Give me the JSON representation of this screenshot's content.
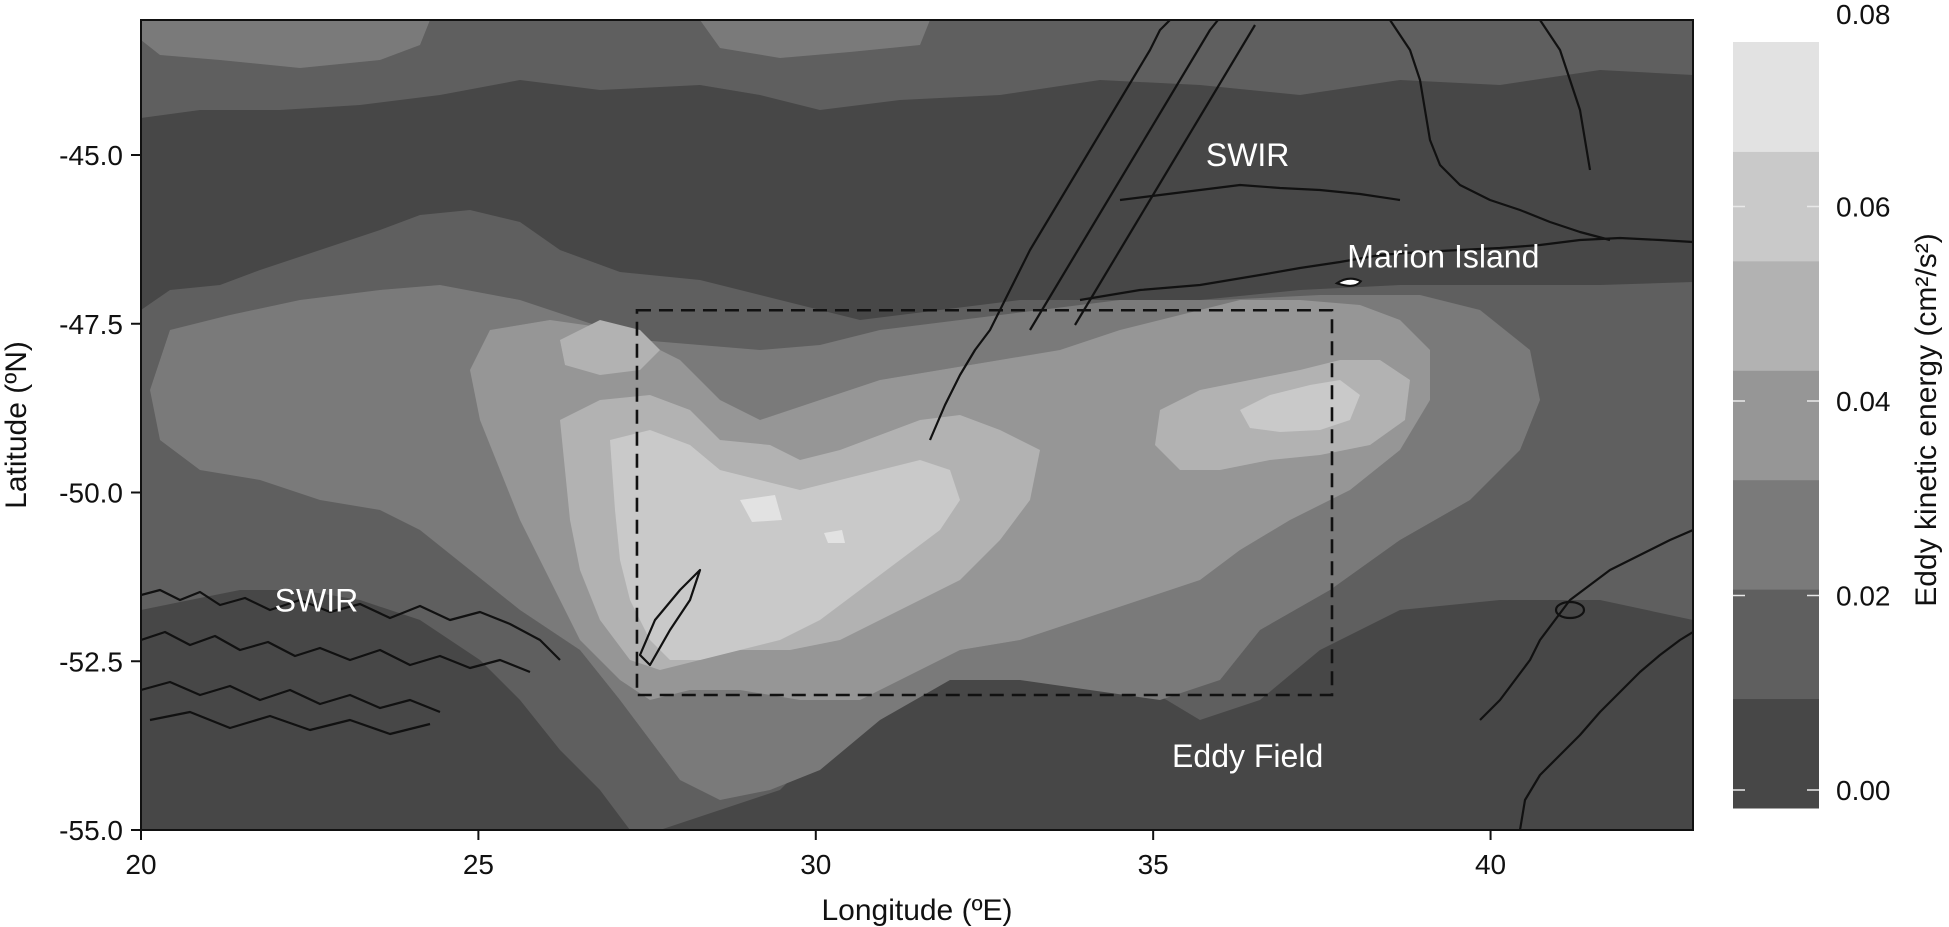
{
  "map": {
    "x_axis": {
      "title": "Longitude (ºE)",
      "range": [
        20,
        43
      ],
      "ticks": [
        {
          "value": 20,
          "label": "20"
        },
        {
          "value": 25,
          "label": "25"
        },
        {
          "value": 30,
          "label": "30"
        },
        {
          "value": 35,
          "label": "35"
        },
        {
          "value": 40,
          "label": "40"
        }
      ]
    },
    "y_axis": {
      "title": "Latitude (ºN)",
      "range": [
        -55,
        -43
      ],
      "ticks": [
        {
          "value": -45.0,
          "label": "-45.0"
        },
        {
          "value": -47.5,
          "label": "-47.5"
        },
        {
          "value": -50.0,
          "label": "-50.0"
        },
        {
          "value": -52.5,
          "label": "-52.5"
        },
        {
          "value": -55.0,
          "label": "-55.0"
        }
      ]
    },
    "labels": [
      {
        "text": "SWIR",
        "lon": 22.6,
        "lat": -51.6
      },
      {
        "text": "SWIR",
        "lon": 36.4,
        "lat": -45.0
      },
      {
        "text": "Marion Island",
        "lon": 39.3,
        "lat": -46.5
      },
      {
        "text": "Eddy Field",
        "lon": 36.4,
        "lat": -53.9
      }
    ],
    "box": {
      "lon_min": 27.35,
      "lon_max": 37.65,
      "lat_min": -53.0,
      "lat_max": -47.3
    },
    "marion_island": {
      "lon": 37.9,
      "lat": -46.9
    }
  },
  "colorbar": {
    "title": "Eddy kinetic energy (cm²/s²)",
    "range": [
      0.0,
      0.08
    ],
    "ticks": [
      {
        "value": 0.0,
        "label": "0.00"
      },
      {
        "value": 0.02,
        "label": "0.02"
      },
      {
        "value": 0.04,
        "label": "0.04"
      },
      {
        "value": 0.06,
        "label": "0.06"
      },
      {
        "value": 0.08,
        "label": "0.08"
      }
    ]
  },
  "colors": {
    "level_0": "#474747",
    "level_1": "#5f5f5f",
    "level_2": "#7a7a7a",
    "level_3": "#969696",
    "level_4": "#b2b2b2",
    "level_5": "#c9c9c9",
    "level_6": "#e2e2e2"
  }
}
